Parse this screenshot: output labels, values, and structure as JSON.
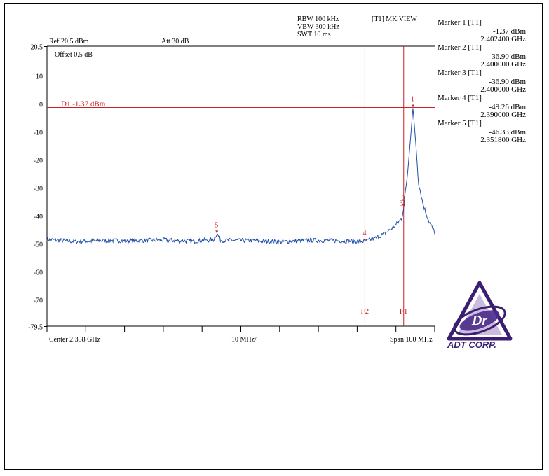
{
  "header": {
    "rbw": "RBW 100 kHz",
    "vbw": "VBW 300 kHz",
    "swt": "SWT 10 ms",
    "mode": "[T1] MK VIEW",
    "ref": "Ref 20.5 dBm",
    "att": "Att 30 dB",
    "offset": "Offset 0.5 dB"
  },
  "markers": [
    {
      "title": "Marker 1 [T1]",
      "level": "-1.37 dBm",
      "freq": "2.402400 GHz"
    },
    {
      "title": "Marker 2 [T1]",
      "level": "-36.90 dBm",
      "freq": "2.400000 GHz"
    },
    {
      "title": "Marker 3 [T1]",
      "level": "-36.90 dBm",
      "freq": "2.400000 GHz"
    },
    {
      "title": "Marker 4 [T1]",
      "level": "-49.26 dBm",
      "freq": "2.390000 GHz"
    },
    {
      "title": "Marker 5 [T1]",
      "level": "-46.33 dBm",
      "freq": "2.351800 GHz"
    }
  ],
  "footer": {
    "center": "Center 2.358 GHz",
    "div": "10 MHz/",
    "span": "Span 100 MHz"
  },
  "display_line_label": "D1 -1.37 dBm",
  "freq_lines": [
    {
      "label": "F2",
      "freq_ghz": 2.39
    },
    {
      "label": "F1",
      "freq_ghz": 2.4
    }
  ],
  "logo_text": "ADT CORP.",
  "logo_mark": "Dr",
  "colors": {
    "trace": "#1f4fa8",
    "marker": "#cc2020",
    "grid": "#000000"
  },
  "chart_data": {
    "type": "line",
    "x_start_ghz": 2.308,
    "x_stop_ghz": 2.408,
    "ylim": [
      -79.5,
      20.5
    ],
    "yticks": [
      20.5,
      10,
      0,
      -10,
      -20,
      -30,
      -40,
      -50,
      -60,
      -70,
      -79.5
    ],
    "ytick_labels": [
      "20.5",
      "10",
      "0",
      "-10",
      "-20",
      "-30",
      "-40",
      "-50",
      "-60",
      "-70",
      "-79.5"
    ],
    "display_line_db": -1.37,
    "series": [
      {
        "x_ghz": [
          2.308,
          2.3155,
          2.323,
          2.3305,
          2.338,
          2.3455,
          2.351,
          2.3518,
          2.3528,
          2.3605,
          2.368,
          2.3755,
          2.383,
          2.3885,
          2.39,
          2.3925,
          2.395,
          2.3975,
          2.3995,
          2.4,
          2.401,
          2.4018,
          2.4024,
          2.403,
          2.4038,
          2.405,
          2.4065,
          2.408
        ],
        "y_dbm": [
          -48.5,
          -49.3,
          -48.9,
          -49.0,
          -48.7,
          -49.2,
          -48.6,
          -46.3,
          -48.8,
          -48.9,
          -49.4,
          -48.8,
          -49.0,
          -49.2,
          -49.26,
          -48.2,
          -46.5,
          -44.0,
          -41.0,
          -36.9,
          -25.0,
          -12.0,
          -1.37,
          -12.0,
          -28.0,
          -36.0,
          -42.0,
          -46.0
        ]
      }
    ],
    "markers": [
      {
        "n": "1",
        "x_ghz": 2.4024,
        "y_dbm": -1.37
      },
      {
        "n": "2",
        "x_ghz": 2.4,
        "y_dbm": -36.9
      },
      {
        "n": "3",
        "x_ghz": 2.4,
        "y_dbm": -36.9
      },
      {
        "n": "4",
        "x_ghz": 2.39,
        "y_dbm": -49.26
      },
      {
        "n": "5",
        "x_ghz": 2.3518,
        "y_dbm": -46.33
      }
    ]
  }
}
